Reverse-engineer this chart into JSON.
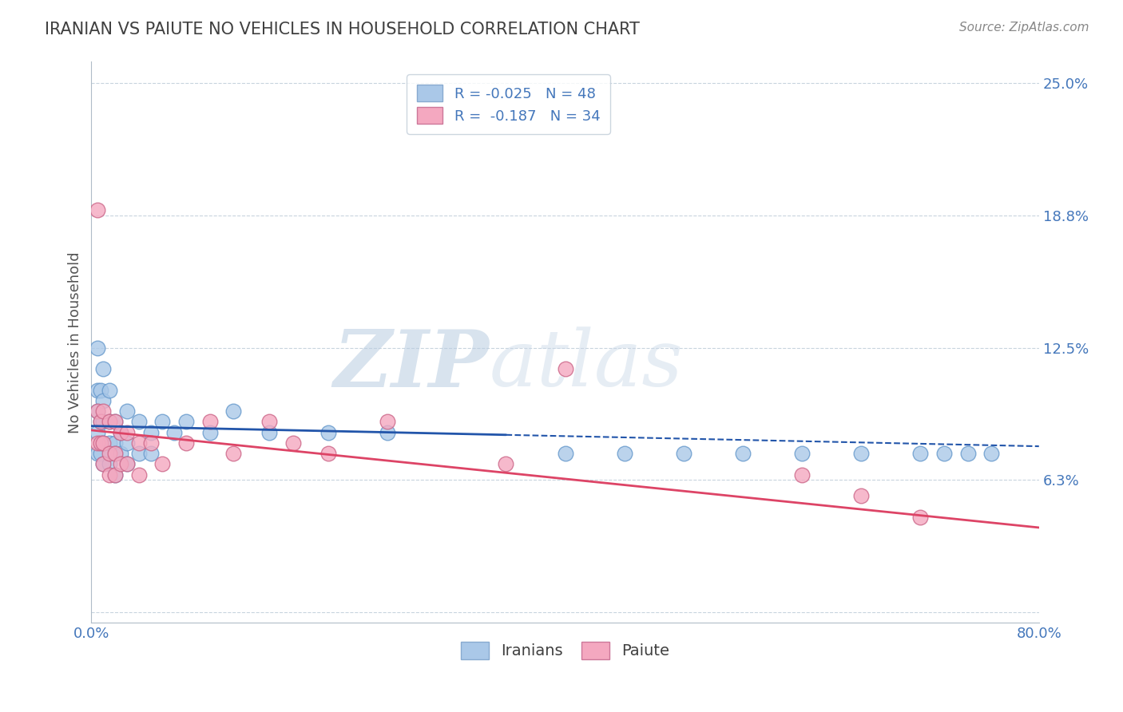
{
  "title": "IRANIAN VS PAIUTE NO VEHICLES IN HOUSEHOLD CORRELATION CHART",
  "source_text": "Source: ZipAtlas.com",
  "ylabel": "No Vehicles in Household",
  "xlim": [
    0.0,
    0.8
  ],
  "ylim": [
    -0.005,
    0.26
  ],
  "yticks": [
    0.0,
    0.0625,
    0.125,
    0.1875,
    0.25
  ],
  "ytick_labels": [
    "",
    "6.3%",
    "12.5%",
    "18.8%",
    "25.0%"
  ],
  "xticks": [
    0.0,
    0.8
  ],
  "xtick_labels": [
    "0.0%",
    "80.0%"
  ],
  "iranians_color": "#aac8e8",
  "iranians_edge": "#6699cc",
  "paiute_color": "#f4a8c0",
  "paiute_edge": "#cc6688",
  "trend_blue_color": "#2255aa",
  "trend_pink_color": "#dd4466",
  "watermark_text": "ZIPatlas",
  "watermark_color": "#c8d8e8",
  "background_color": "#ffffff",
  "grid_color": "#c8d4de",
  "title_color": "#404040",
  "label_color": "#4477bb",
  "iranians_x": [
    0.005,
    0.005,
    0.005,
    0.005,
    0.005,
    0.008,
    0.008,
    0.008,
    0.01,
    0.01,
    0.01,
    0.01,
    0.01,
    0.015,
    0.015,
    0.015,
    0.015,
    0.02,
    0.02,
    0.02,
    0.02,
    0.025,
    0.025,
    0.03,
    0.03,
    0.03,
    0.04,
    0.04,
    0.05,
    0.05,
    0.06,
    0.07,
    0.08,
    0.1,
    0.12,
    0.15,
    0.2,
    0.25,
    0.4,
    0.45,
    0.5,
    0.55,
    0.6,
    0.65,
    0.7,
    0.72,
    0.74,
    0.76
  ],
  "iranians_y": [
    0.125,
    0.105,
    0.095,
    0.085,
    0.075,
    0.105,
    0.09,
    0.075,
    0.115,
    0.1,
    0.09,
    0.08,
    0.07,
    0.105,
    0.09,
    0.08,
    0.07,
    0.09,
    0.08,
    0.075,
    0.065,
    0.085,
    0.075,
    0.095,
    0.08,
    0.07,
    0.09,
    0.075,
    0.085,
    0.075,
    0.09,
    0.085,
    0.09,
    0.085,
    0.095,
    0.085,
    0.085,
    0.085,
    0.075,
    0.075,
    0.075,
    0.075,
    0.075,
    0.075,
    0.075,
    0.075,
    0.075,
    0.075
  ],
  "paiute_x": [
    0.005,
    0.005,
    0.005,
    0.008,
    0.008,
    0.01,
    0.01,
    0.01,
    0.015,
    0.015,
    0.015,
    0.02,
    0.02,
    0.02,
    0.025,
    0.025,
    0.03,
    0.03,
    0.04,
    0.04,
    0.05,
    0.06,
    0.08,
    0.1,
    0.12,
    0.15,
    0.17,
    0.2,
    0.25,
    0.35,
    0.4,
    0.6,
    0.65,
    0.7
  ],
  "paiute_y": [
    0.19,
    0.095,
    0.08,
    0.09,
    0.08,
    0.095,
    0.08,
    0.07,
    0.09,
    0.075,
    0.065,
    0.09,
    0.075,
    0.065,
    0.085,
    0.07,
    0.085,
    0.07,
    0.08,
    0.065,
    0.08,
    0.07,
    0.08,
    0.09,
    0.075,
    0.09,
    0.08,
    0.075,
    0.09,
    0.07,
    0.115,
    0.065,
    0.055,
    0.045
  ]
}
